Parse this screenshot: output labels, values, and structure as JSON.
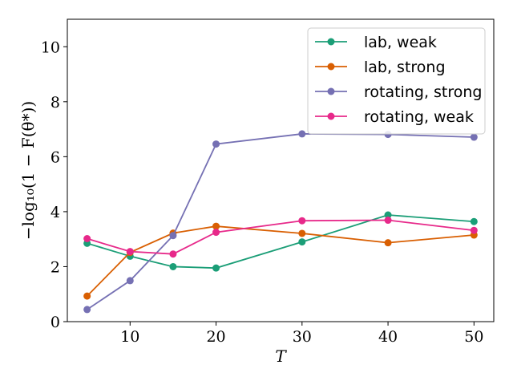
{
  "chart_data": {
    "type": "line",
    "title": "",
    "xlabel": "T",
    "ylabel": "−log₁₀(1 − F(θ*))",
    "xlim": [
      2.7,
      52.3
    ],
    "ylim": [
      0,
      11
    ],
    "x": [
      5,
      10,
      15,
      20,
      30,
      40,
      50
    ],
    "xticks": [
      10,
      20,
      30,
      40,
      50
    ],
    "yticks": [
      0,
      2,
      4,
      6,
      8,
      10
    ],
    "grid": false,
    "legend_position": "top-right",
    "series": [
      {
        "name": "lab, weak",
        "color": "#1b9e77",
        "values": [
          2.85,
          2.38,
          2.0,
          1.95,
          2.9,
          3.88,
          3.64
        ]
      },
      {
        "name": "lab, strong",
        "color": "#d95f02",
        "values": [
          0.93,
          2.52,
          3.22,
          3.47,
          3.21,
          2.87,
          3.15
        ]
      },
      {
        "name": "rotating, strong",
        "color": "#7570b3",
        "values": [
          0.44,
          1.49,
          3.13,
          6.46,
          6.83,
          6.81,
          6.71
        ]
      },
      {
        "name": "rotating, weak",
        "color": "#e7298a",
        "values": [
          3.02,
          2.55,
          2.46,
          3.25,
          3.67,
          3.69,
          3.32
        ]
      }
    ]
  }
}
